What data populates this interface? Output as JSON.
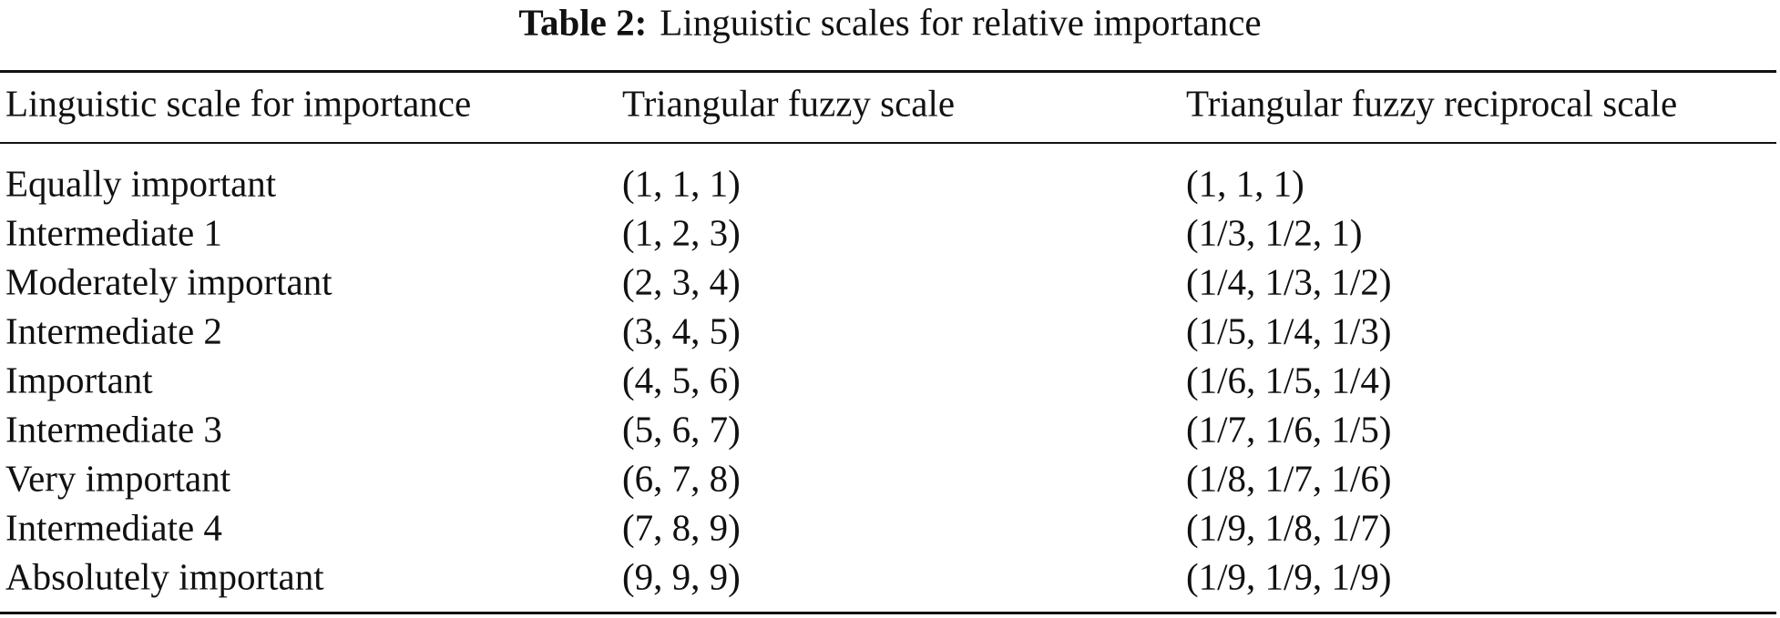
{
  "caption": {
    "label": "Table 2:",
    "text": "Linguistic scales for relative importance"
  },
  "table": {
    "header": [
      "Linguistic scale for importance",
      "Triangular fuzzy scale",
      "Triangular fuzzy reciprocal scale"
    ],
    "rows": [
      [
        "Equally important",
        "(1, 1, 1)",
        "(1, 1, 1)"
      ],
      [
        "Intermediate 1",
        "(1, 2, 3)",
        "(1/3, 1/2, 1)"
      ],
      [
        "Moderately important",
        "(2, 3, 4)",
        "(1/4, 1/3, 1/2)"
      ],
      [
        "Intermediate 2",
        "(3, 4, 5)",
        "(1/5, 1/4, 1/3)"
      ],
      [
        "Important",
        "(4, 5, 6)",
        "(1/6, 1/5, 1/4)"
      ],
      [
        "Intermediate 3",
        "(5, 6, 7)",
        "(1/7, 1/6, 1/5)"
      ],
      [
        "Very important",
        "(6, 7, 8)",
        "(1/8, 1/7, 1/6)"
      ],
      [
        "Intermediate 4",
        "(7, 8, 9)",
        "(1/9, 1/8, 1/7)"
      ],
      [
        "Absolutely important",
        "(9, 9, 9)",
        "(1/9, 1/9, 1/9)"
      ]
    ]
  }
}
